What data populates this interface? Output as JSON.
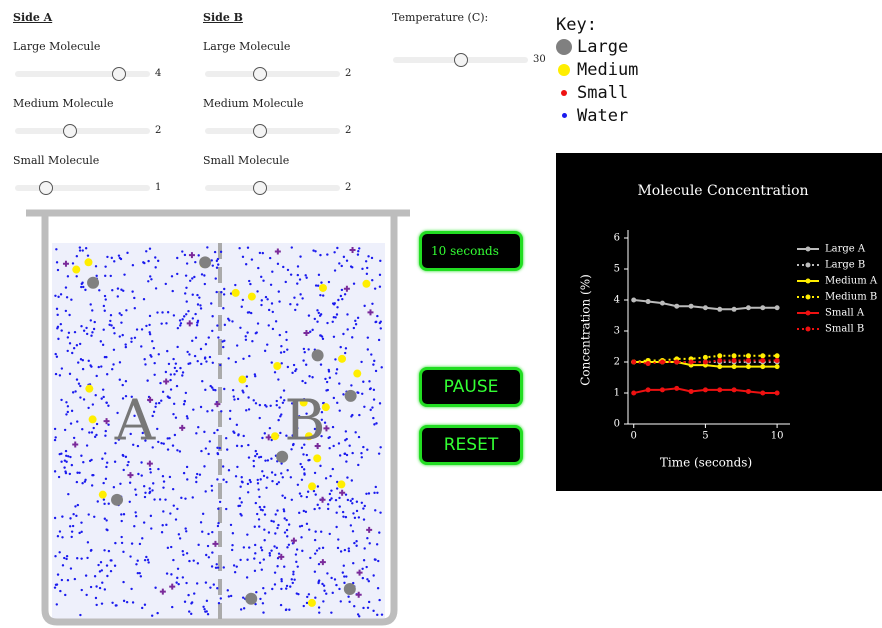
{
  "side_a": {
    "heading": "Side A",
    "controls": [
      {
        "label": "Large Molecule",
        "value": 4
      },
      {
        "label": "Medium Molecule",
        "value": 2
      },
      {
        "label": "Small Molecule",
        "value": 1
      }
    ]
  },
  "side_b": {
    "heading": "Side B",
    "controls": [
      {
        "label": "Large Molecule",
        "value": 2
      },
      {
        "label": "Medium Molecule",
        "value": 2
      },
      {
        "label": "Small Molecule",
        "value": 2
      }
    ]
  },
  "temperature": {
    "label": "Temperature (C):",
    "value": 30
  },
  "key": {
    "title": "Key:",
    "items": [
      {
        "label": "Large",
        "color": "#808080"
      },
      {
        "label": "Medium",
        "color": "#ffee00"
      },
      {
        "label": "Small",
        "color": "#ee1111"
      },
      {
        "label": "Water",
        "color": "#1a1aee"
      }
    ]
  },
  "beaker": {
    "labels": [
      "A",
      "B"
    ]
  },
  "timer": "10 seconds",
  "buttons": [
    "PAUSE",
    "RESET"
  ],
  "chart_data": {
    "type": "line",
    "title": "Molecule Concentration",
    "x_label": "Time (seconds)",
    "y_label": "Concentration (%)",
    "x": [
      0,
      1,
      2,
      3,
      4,
      5,
      6,
      7,
      8,
      9,
      10
    ],
    "series": [
      {
        "name": "Large A",
        "color": "#bbbbbb",
        "dash": false,
        "values": [
          4.0,
          3.95,
          3.9,
          3.8,
          3.8,
          3.75,
          3.7,
          3.7,
          3.75,
          3.75,
          3.75
        ]
      },
      {
        "name": "Large B",
        "color": "#bbbbbb",
        "dash": true,
        "values": [
          2.0,
          2.0,
          2.0,
          2.0,
          2.0,
          2.0,
          2.0,
          2.0,
          2.0,
          2.0,
          2.0
        ]
      },
      {
        "name": "Medium A",
        "color": "#ffee00",
        "dash": false,
        "values": [
          2.0,
          2.0,
          2.0,
          2.0,
          1.9,
          1.9,
          1.85,
          1.85,
          1.85,
          1.85,
          1.85
        ]
      },
      {
        "name": "Medium B",
        "color": "#ffee00",
        "dash": true,
        "values": [
          2.0,
          2.05,
          2.05,
          2.1,
          2.1,
          2.15,
          2.2,
          2.2,
          2.2,
          2.2,
          2.2
        ]
      },
      {
        "name": "Small A",
        "color": "#ee1111",
        "dash": false,
        "values": [
          1.0,
          1.1,
          1.1,
          1.15,
          1.05,
          1.1,
          1.1,
          1.1,
          1.05,
          1.0,
          1.0
        ]
      },
      {
        "name": "Small B",
        "color": "#ee1111",
        "dash": true,
        "values": [
          2.0,
          1.95,
          2.0,
          2.0,
          2.0,
          2.0,
          2.05,
          2.05,
          2.05,
          2.05,
          2.05
        ]
      }
    ],
    "xlim": [
      -0.4,
      10.9
    ],
    "ylim": [
      0,
      6
    ],
    "xticks": [
      0,
      5,
      10
    ],
    "yticks": [
      0,
      1,
      2,
      3,
      4,
      5,
      6
    ],
    "legend": "right"
  }
}
